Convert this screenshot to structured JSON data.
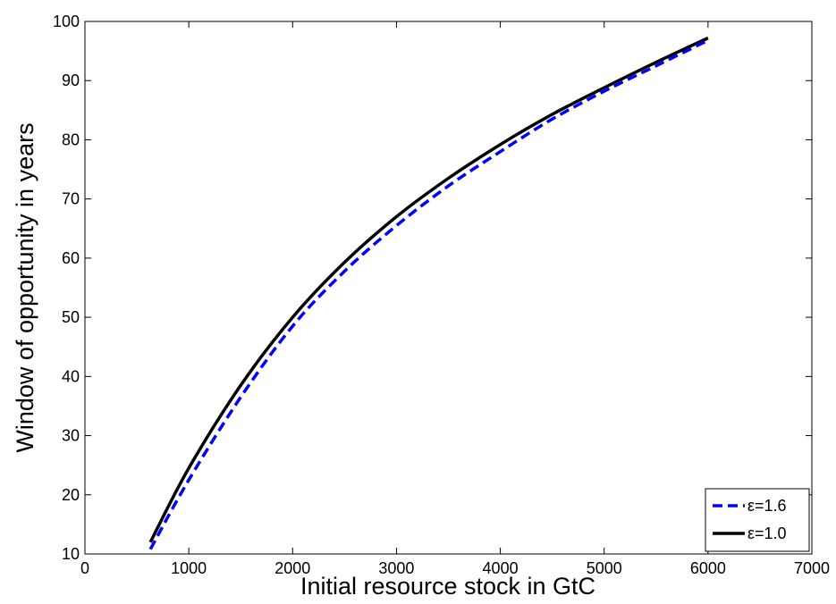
{
  "chart_data": {
    "type": "line",
    "xlabel": "Initial resource stock in GtC",
    "ylabel": "Window of opportunity in years",
    "xlim": [
      0,
      7000
    ],
    "ylim": [
      10,
      100
    ],
    "xticks": [
      0,
      1000,
      2000,
      3000,
      4000,
      5000,
      6000,
      7000
    ],
    "yticks": [
      10,
      20,
      30,
      40,
      50,
      60,
      70,
      80,
      90,
      100
    ],
    "grid": false,
    "legend_position": "bottom-right",
    "series": [
      {
        "name": "ε=1.6",
        "style": "dashed",
        "color": "#0000ff",
        "x": [
          630,
          1000,
          1500,
          2000,
          2500,
          3000,
          3500,
          4000,
          4500,
          5000,
          5500,
          6000
        ],
        "y": [
          10.8,
          22.5,
          36.5,
          48.5,
          57.8,
          65.5,
          72.2,
          78.0,
          83.5,
          88.2,
          92.5,
          96.8
        ]
      },
      {
        "name": "ε=1.0",
        "style": "solid",
        "color": "#000000",
        "x": [
          630,
          1000,
          1500,
          2000,
          2500,
          3000,
          3500,
          4000,
          4500,
          5000,
          5500,
          6000
        ],
        "y": [
          12.0,
          24.5,
          38.5,
          50.0,
          59.3,
          67.0,
          73.5,
          79.2,
          84.3,
          88.8,
          93.1,
          97.2
        ]
      }
    ]
  }
}
